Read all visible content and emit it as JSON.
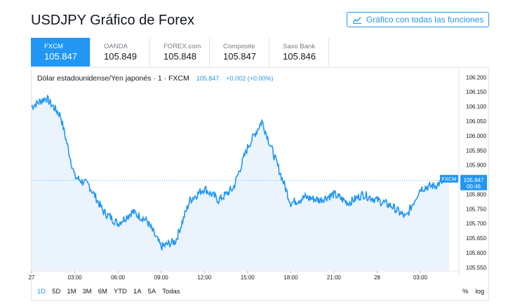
{
  "page": {
    "title": "USDJPY Gráfico de Forex",
    "full_chart_label": "Gráfico con todas las funciones"
  },
  "tabs": [
    {
      "name": "FXCM",
      "value": "105.847",
      "active": true
    },
    {
      "name": "OANDA",
      "value": "105.849",
      "active": false
    },
    {
      "name": "FOREX.com",
      "value": "105.848",
      "active": false
    },
    {
      "name": "Composite",
      "value": "105.847",
      "active": false
    },
    {
      "name": "Saxo Bank",
      "value": "105.846",
      "active": false
    }
  ],
  "legend": {
    "title": "Dólar estadounidense/Yen japonés · 1 · FXCM",
    "price": "105.847",
    "change": "+0.002 (+0.00%)"
  },
  "price_marker": {
    "source": "FXCM",
    "price": "105.847",
    "countdown": "00:46"
  },
  "range_buttons": [
    "1D",
    "5D",
    "1M",
    "3M",
    "6M",
    "YTD",
    "1A",
    "5A",
    "Todas"
  ],
  "active_range": "1D",
  "scale_buttons": [
    "%",
    "log"
  ],
  "colors": {
    "accent": "#2196f3",
    "area_fill": "#e3f0fc",
    "text": "#131722",
    "muted": "#787b86"
  },
  "chart_data": {
    "type": "area",
    "ylim": [
      105.54,
      106.22
    ],
    "y_ticks": [
      "106.200",
      "106.150",
      "106.100",
      "106.050",
      "106.000",
      "105.950",
      "105.900",
      "105.850",
      "105.800",
      "105.750",
      "105.700",
      "105.650",
      "105.600",
      "105.550"
    ],
    "x_ticks": [
      "27",
      "03:00",
      "06:00",
      "09:00",
      "12:00",
      "15:00",
      "18:00",
      "21:00",
      "28",
      "03:00"
    ],
    "x": [
      "27 00:00",
      "27 01:00",
      "27 02:00",
      "27 03:00",
      "27 04:00",
      "27 05:00",
      "27 06:00",
      "27 07:00",
      "27 08:00",
      "27 09:00",
      "27 10:00",
      "27 11:00",
      "27 12:00",
      "27 13:00",
      "27 14:00",
      "27 15:00",
      "27 16:00",
      "27 17:00",
      "27 18:00",
      "27 19:00",
      "27 20:00",
      "27 21:00",
      "27 22:00",
      "27 23:00",
      "28 00:00",
      "28 01:00",
      "28 02:00",
      "28 03:00",
      "28 04:00",
      "28 05:00"
    ],
    "values": [
      106.1,
      106.13,
      106.07,
      105.86,
      105.83,
      105.74,
      105.7,
      105.74,
      105.71,
      105.62,
      105.64,
      105.78,
      105.82,
      105.78,
      105.82,
      105.96,
      106.05,
      105.91,
      105.77,
      105.79,
      105.78,
      105.8,
      105.77,
      105.8,
      105.78,
      105.76,
      105.72,
      105.82,
      105.83,
      105.85
    ],
    "last_value": 105.847
  }
}
